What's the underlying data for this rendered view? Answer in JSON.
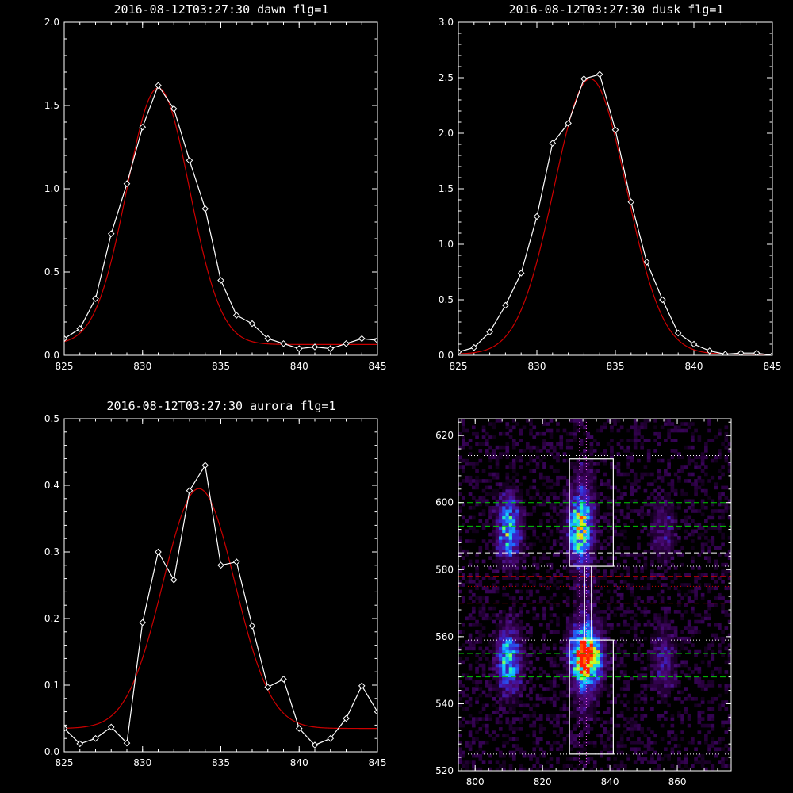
{
  "chart_data": [
    {
      "type": "line",
      "title": "2016-08-12T03:27:30 dawn flg=1",
      "xlim": [
        825,
        845
      ],
      "ylim": [
        0,
        2.0
      ],
      "xticks": [
        825,
        830,
        835,
        840,
        845
      ],
      "yticks": [
        0.0,
        0.5,
        1.0,
        1.5,
        2.0
      ],
      "ytick_labels": [
        "0.0",
        "0.5",
        "1.0",
        "1.5",
        "2.0"
      ],
      "series": [
        {
          "color": "#ffffff",
          "markers": "diamond",
          "x": [
            825,
            826,
            827,
            828,
            829,
            830,
            831,
            832,
            833,
            834,
            835,
            836,
            837,
            838,
            839,
            840,
            841,
            842,
            843,
            844,
            845
          ],
          "y": [
            0.1,
            0.16,
            0.34,
            0.73,
            1.03,
            1.37,
            1.62,
            1.48,
            1.17,
            0.88,
            0.45,
            0.24,
            0.19,
            0.1,
            0.07,
            0.04,
            0.05,
            0.04,
            0.07,
            0.1,
            0.09
          ]
        },
        {
          "color": "#cc0000",
          "fit": "gaussian",
          "amplitude": 1.54,
          "center": 831.0,
          "sigma": 2.0,
          "offset": 0.065
        }
      ]
    },
    {
      "type": "line",
      "title": "2016-08-12T03:27:30 dusk flg=1",
      "xlim": [
        825,
        845
      ],
      "ylim": [
        0,
        3.0
      ],
      "xticks": [
        825,
        830,
        835,
        840,
        845
      ],
      "yticks": [
        0.0,
        0.5,
        1.0,
        1.5,
        2.0,
        2.5,
        3.0
      ],
      "ytick_labels": [
        "0.0",
        "0.5",
        "1.0",
        "1.5",
        "2.0",
        "2.5",
        "3.0"
      ],
      "series": [
        {
          "color": "#ffffff",
          "markers": "diamond",
          "x": [
            825,
            826,
            827,
            828,
            829,
            830,
            831,
            832,
            833,
            834,
            835,
            836,
            837,
            838,
            839,
            840,
            841,
            842,
            843,
            844,
            845
          ],
          "y": [
            0.03,
            0.07,
            0.21,
            0.45,
            0.74,
            1.25,
            1.91,
            2.09,
            2.49,
            2.53,
            2.03,
            1.38,
            0.84,
            0.5,
            0.2,
            0.1,
            0.04,
            0.01,
            0.02,
            0.02,
            0.0
          ]
        },
        {
          "color": "#cc0000",
          "fit": "gaussian",
          "amplitude": 2.48,
          "center": 833.4,
          "sigma": 2.3,
          "offset": 0.01
        }
      ]
    },
    {
      "type": "line",
      "title": "2016-08-12T03:27:30 aurora flg=1",
      "xlim": [
        825,
        845
      ],
      "ylim": [
        0,
        0.5
      ],
      "xticks": [
        825,
        830,
        835,
        840,
        845
      ],
      "yticks": [
        0.0,
        0.1,
        0.2,
        0.3,
        0.4,
        0.5
      ],
      "ytick_labels": [
        "0.0",
        "0.1",
        "0.2",
        "0.3",
        "0.4",
        "0.5"
      ],
      "series": [
        {
          "color": "#ffffff",
          "markers": "diamond",
          "x": [
            825,
            826,
            827,
            828,
            829,
            830,
            831,
            832,
            833,
            834,
            835,
            836,
            837,
            838,
            839,
            840,
            841,
            842,
            843,
            844,
            845
          ],
          "y": [
            0.035,
            0.012,
            0.02,
            0.037,
            0.013,
            0.194,
            0.3,
            0.258,
            0.392,
            0.43,
            0.28,
            0.285,
            0.189,
            0.097,
            0.109,
            0.035,
            0.01,
            0.02,
            0.05,
            0.099,
            0.06
          ]
        },
        {
          "color": "#cc0000",
          "fit": "gaussian",
          "amplitude": 0.36,
          "center": 833.6,
          "sigma": 2.3,
          "offset": 0.035
        }
      ]
    },
    {
      "type": "heatmap",
      "title": "",
      "xlim": [
        795,
        876
      ],
      "ylim": [
        520,
        625
      ],
      "xticks": [
        800,
        820,
        840,
        860
      ],
      "yticks": [
        520,
        540,
        560,
        580,
        600,
        620
      ],
      "colormap": [
        "#000000",
        "#2a0040",
        "#4b0a7a",
        "#3a22c8",
        "#1f6bff",
        "#14c8ff",
        "#2cff9a",
        "#cfff20",
        "#ffb000",
        "#ff1a00"
      ],
      "clusters": [
        {
          "x": 833,
          "y": 554,
          "amp": 1.0
        },
        {
          "x": 831,
          "y": 593,
          "amp": 0.62
        },
        {
          "x": 810,
          "y": 553,
          "amp": 0.55
        },
        {
          "x": 810,
          "y": 592,
          "amp": 0.52
        },
        {
          "x": 856,
          "y": 553,
          "amp": 0.22
        },
        {
          "x": 856,
          "y": 592,
          "amp": 0.18
        }
      ],
      "boxes": [
        {
          "x0": 828,
          "x1": 841,
          "y0": 581,
          "y1": 613,
          "color": "#ffffff"
        },
        {
          "x0": 828,
          "x1": 841,
          "y0": 525,
          "y1": 559,
          "color": "#ffffff"
        },
        {
          "x0": 832.5,
          "x1": 834.5,
          "y0": 559,
          "y1": 581,
          "color": "#ffffff"
        }
      ],
      "hlines": [
        {
          "y": 614,
          "color": "#ffffff",
          "style": "dotted"
        },
        {
          "y": 600,
          "color": "#00cc00",
          "style": "dashed"
        },
        {
          "y": 593,
          "color": "#00cc00",
          "style": "dashed"
        },
        {
          "y": 585,
          "color": "#ffffff",
          "style": "dashed"
        },
        {
          "y": 581,
          "color": "#ffffff",
          "style": "dotted"
        },
        {
          "y": 578,
          "color": "#cc0000",
          "style": "dashed"
        },
        {
          "y": 575,
          "color": "#cc0000",
          "style": "dotted"
        },
        {
          "y": 570,
          "color": "#cc0000",
          "style": "dashed"
        },
        {
          "y": 559,
          "color": "#ffffff",
          "style": "dotted"
        },
        {
          "y": 555,
          "color": "#00cc00",
          "style": "dashed"
        },
        {
          "y": 548,
          "color": "#00cc00",
          "style": "dashed"
        },
        {
          "y": 525,
          "color": "#ffffff",
          "style": "dotted"
        }
      ],
      "vlines": [
        {
          "x": 831,
          "color": "#ff66ff",
          "style": "dotted"
        },
        {
          "x": 833,
          "color": "#ff66ff",
          "style": "dotted"
        }
      ]
    }
  ]
}
